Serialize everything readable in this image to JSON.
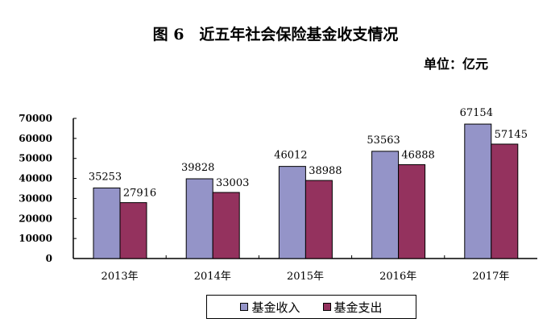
{
  "chart_data": {
    "type": "bar",
    "title": "图 6　近五年社会保险基金收支情况",
    "unit": "单位：亿元",
    "categories": [
      "2013年",
      "2014年",
      "2015年",
      "2016年",
      "2017年"
    ],
    "series": [
      {
        "name": "基金收入",
        "color": "#9494c8",
        "values": [
          35253,
          39828,
          46012,
          53563,
          67154
        ]
      },
      {
        "name": "基金支出",
        "color": "#94325e",
        "values": [
          27916,
          33003,
          38988,
          46888,
          57145
        ]
      }
    ],
    "ylim": [
      0,
      70000
    ],
    "yticks": [
      "0",
      "10000",
      "20000",
      "30000",
      "40000",
      "50000",
      "60000",
      "70000"
    ],
    "grid": false,
    "legend": "bottom"
  }
}
